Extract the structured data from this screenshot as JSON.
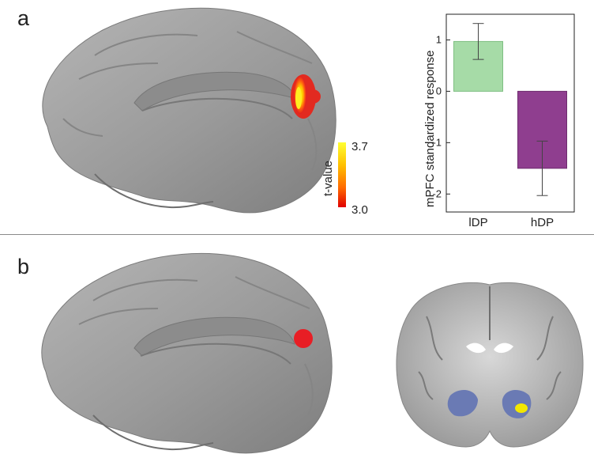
{
  "panels": {
    "a": {
      "letter": "a"
    },
    "b": {
      "letter": "b"
    }
  },
  "colorbar": {
    "label": "t-value",
    "max_label": "3.7",
    "min_label": "3.0",
    "gradient": [
      "#ffff33",
      "#ffc000",
      "#ff6a00",
      "#e00000"
    ]
  },
  "colors": {
    "brain": "#9c9c9c",
    "activation_peak": "#ffe000",
    "activation_edge": "#e22020",
    "roi_red": "#e81e25",
    "roi_blue": "#6a7ab4",
    "roi_yellow": "#f2e600",
    "bar_ldp": "#a6dba7",
    "bar_hdp": "#8f3e8f"
  },
  "chart_data": {
    "type": "bar",
    "categories": [
      "lDP",
      "hDP"
    ],
    "values": [
      0.97,
      -1.5
    ],
    "errors": [
      [
        0.62,
        1.32
      ],
      [
        -2.03,
        -0.97
      ]
    ],
    "ylabel": "mPFC standardized response",
    "ylim": [
      -2.35,
      1.5
    ],
    "yticks": [
      "1",
      "0",
      "-1",
      "-2"
    ],
    "ytick_values": [
      1,
      0,
      -1,
      -2
    ],
    "bar_colors": [
      "#a6dba7",
      "#8f3e8f"
    ],
    "bar_edges": [
      "#7fbf82",
      "#6f2c6f"
    ]
  }
}
